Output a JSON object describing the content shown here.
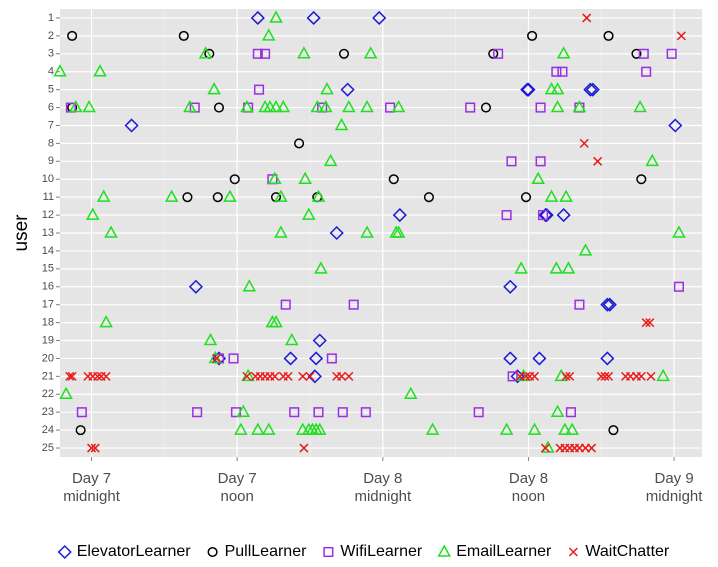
{
  "chart_data": {
    "type": "scatter",
    "y_label": "user",
    "xlim": [
      -2.6,
      50.3
    ],
    "xticks": [
      {
        "value": 0,
        "label": [
          "Day 7",
          "midnight"
        ]
      },
      {
        "value": 12,
        "label": [
          "Day 7",
          "noon"
        ]
      },
      {
        "value": 24,
        "label": [
          "Day 8",
          "midnight"
        ]
      },
      {
        "value": 36,
        "label": [
          "Day 8",
          "noon"
        ]
      },
      {
        "value": 48,
        "label": [
          "Day 9",
          "midnight"
        ]
      }
    ],
    "ylim": [
      0.5,
      25.5
    ],
    "y_reversed": true,
    "yticks": [
      1,
      2,
      3,
      4,
      5,
      6,
      7,
      8,
      9,
      10,
      11,
      12,
      13,
      14,
      15,
      16,
      17,
      18,
      19,
      20,
      21,
      22,
      23,
      24,
      25
    ],
    "grid": true,
    "legend": "bottom",
    "series": [
      {
        "name": "ElevatorLearner",
        "color": "#1a1ad6",
        "shape": "diamond",
        "x": [
          13.7,
          18.3,
          23.7,
          21.1,
          35.9,
          36.0,
          41.3,
          41.1,
          3.3,
          48.1,
          25.4,
          37.4,
          37.5,
          38.9,
          20.2,
          8.6,
          34.5,
          42.5,
          42.7,
          18.8,
          10.5,
          16.4,
          18.5,
          34.5,
          36.9,
          42.5,
          18.4,
          35.1
        ],
        "values": [
          1,
          1,
          1,
          5,
          5,
          5,
          5,
          5,
          7,
          7,
          12,
          12,
          12,
          12,
          13,
          16,
          16,
          17,
          17,
          19,
          20,
          20,
          20,
          20,
          20,
          20,
          21,
          21
        ]
      },
      {
        "name": "PullLearner",
        "color": "#000000",
        "shape": "circle",
        "x": [
          -1.6,
          7.6,
          36.3,
          42.6,
          9.7,
          20.8,
          33.1,
          44.9,
          -1.6,
          10.5,
          32.5,
          17.1,
          11.8,
          24.9,
          45.3,
          7.9,
          10.4,
          15.2,
          18.6,
          27.8,
          35.8,
          -0.9,
          43.0
        ],
        "values": [
          2,
          2,
          2,
          2,
          3,
          3,
          3,
          3,
          6,
          6,
          6,
          8,
          10,
          10,
          10,
          11,
          11,
          11,
          11,
          11,
          11,
          24,
          24
        ]
      },
      {
        "name": "WifiLearner",
        "color": "#9b30e0",
        "shape": "square",
        "x": [
          13.7,
          14.3,
          33.5,
          45.5,
          47.8,
          38.3,
          38.8,
          45.7,
          13.8,
          -1.7,
          8.5,
          12.9,
          19.0,
          24.6,
          31.2,
          37.0,
          40.2,
          34.6,
          37.0,
          14.9,
          34.2,
          37.2,
          48.4,
          16.0,
          21.6,
          40.2,
          10.5,
          11.7,
          19.8,
          34.7,
          -0.8,
          8.7,
          11.9,
          16.7,
          18.7,
          20.7,
          22.6,
          31.9,
          39.5
        ],
        "values": [
          3,
          3,
          3,
          3,
          3,
          4,
          4,
          4,
          5,
          6,
          6,
          6,
          6,
          6,
          6,
          6,
          6,
          9,
          9,
          10,
          12,
          12,
          16,
          17,
          17,
          17,
          20,
          20,
          20,
          21,
          23,
          23,
          23,
          23,
          23,
          23,
          23,
          23,
          23
        ]
      },
      {
        "name": "EmailLearner",
        "color": "#1ee01e",
        "shape": "triangle",
        "x": [
          15.2,
          14.6,
          9.4,
          17.5,
          23.0,
          38.9,
          -2.6,
          0.7,
          10.1,
          19.4,
          37.9,
          38.4,
          -1.3,
          -0.2,
          8.1,
          12.8,
          14.3,
          14.7,
          15.2,
          15.8,
          18.6,
          19.3,
          21.2,
          22.7,
          25.3,
          38.4,
          40.2,
          45.2,
          20.6,
          19.7,
          46.2,
          15.1,
          17.6,
          36.8,
          1.0,
          6.6,
          11.4,
          15.6,
          18.7,
          37.9,
          39.1,
          0.1,
          17.9,
          1.6,
          15.6,
          22.7,
          25.1,
          25.3,
          48.4,
          40.7,
          18.9,
          35.4,
          38.3,
          39.3,
          13.0,
          1.2,
          14.9,
          15.2,
          9.8,
          16.5,
          10.2,
          12.9,
          35.6,
          38.7,
          47.1,
          -2.1,
          26.3,
          12.5,
          38.4,
          12.3,
          13.7,
          14.6,
          17.4,
          17.9,
          18.2,
          18.5,
          18.8,
          28.1,
          34.2,
          36.5,
          39.0,
          39.6,
          37.6
        ],
        "values": [
          1,
          2,
          3,
          3,
          3,
          3,
          4,
          4,
          5,
          5,
          5,
          5,
          6,
          6,
          6,
          6,
          6,
          6,
          6,
          6,
          6,
          6,
          6,
          6,
          6,
          6,
          6,
          6,
          7,
          9,
          9,
          10,
          10,
          10,
          11,
          11,
          11,
          11,
          11,
          11,
          11,
          12,
          12,
          13,
          13,
          13,
          13,
          13,
          13,
          14,
          15,
          15,
          15,
          15,
          16,
          18,
          18,
          18,
          19,
          19,
          20,
          21,
          21,
          21,
          21,
          22,
          22,
          23,
          23,
          24,
          24,
          24,
          24,
          24,
          24,
          24,
          24,
          24,
          24,
          24,
          24,
          24,
          25
        ]
      },
      {
        "name": "WaitChatter",
        "color": "#e81a1a",
        "shape": "x",
        "x": [
          40.8,
          48.6,
          40.6,
          41.7,
          45.7,
          46.0,
          10.3,
          -1.8,
          -1.6,
          -0.3,
          0.1,
          0.5,
          0.8,
          1.2,
          12.8,
          13.5,
          13.9,
          14.3,
          14.7,
          15.1,
          15.8,
          16.2,
          17.4,
          18.0,
          20.2,
          20.6,
          21.2,
          35.3,
          35.8,
          36.1,
          36.5,
          39.1,
          39.4,
          42.0,
          42.3,
          42.6,
          44.0,
          44.4,
          44.9,
          45.3,
          46.1,
          0.0,
          0.3,
          17.5,
          37.4,
          38.6,
          39.0,
          39.4,
          39.8,
          40.2,
          40.7,
          41.2
        ],
        "values": [
          1,
          2,
          8,
          9,
          18,
          18,
          20,
          21,
          21,
          21,
          21,
          21,
          21,
          21,
          21,
          21,
          21,
          21,
          21,
          21,
          21,
          21,
          21,
          21,
          21,
          21,
          21,
          21,
          21,
          21,
          21,
          21,
          21,
          21,
          21,
          21,
          21,
          21,
          21,
          21,
          21,
          25,
          25,
          25,
          25,
          25,
          25,
          25,
          25,
          25,
          25,
          25
        ]
      }
    ]
  }
}
